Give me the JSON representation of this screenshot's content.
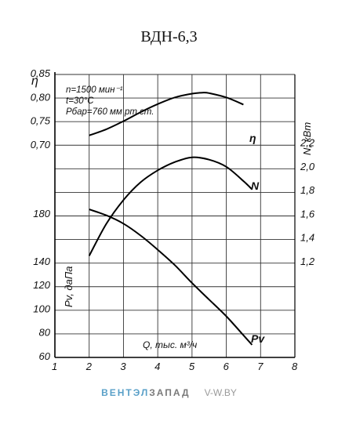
{
  "title": "ВДН-6,3",
  "footer": {
    "brand_left": "ВЕНТЭЛ",
    "brand_right": "ЗАПАД",
    "site": "V-W.BY"
  },
  "chart_data": {
    "type": "line",
    "grid": true,
    "conditions": [
      "n=1500 мин⁻¹",
      "t=30°C",
      "Pбар=760 мм рт.ст."
    ],
    "x_axis": {
      "label": "Q, тыс. м³/ч",
      "range": [
        1,
        8
      ],
      "ticks": [
        1,
        2,
        3,
        4,
        5,
        6,
        7,
        8
      ]
    },
    "axes": {
      "eta": {
        "label": "η",
        "side": "left",
        "range": [
          0.65,
          0.85
        ],
        "ticks": [
          0.7,
          0.75,
          0.8,
          0.85
        ],
        "tick_labels": [
          "0,70",
          "0,75",
          "0,80",
          "0,85"
        ]
      },
      "pv": {
        "label": "Pv, даПа",
        "side": "left",
        "range": [
          60,
          190
        ],
        "ticks": [
          60,
          80,
          100,
          120,
          140,
          180
        ],
        "tick_labels": [
          "60",
          "80",
          "100",
          "120",
          "140",
          "180"
        ]
      },
      "n": {
        "label": "N, кВт",
        "side": "right",
        "range": [
          1.0,
          2.3
        ],
        "ticks": [
          1.2,
          1.4,
          1.6,
          1.8,
          2.0,
          2.2
        ],
        "tick_labels": [
          "1,2",
          "1,4",
          "1,6",
          "1,8",
          "2,0",
          "2,2"
        ]
      }
    },
    "series": [
      {
        "name": "η",
        "axis": "eta",
        "points": [
          [
            2.0,
            0.72
          ],
          [
            2.5,
            0.733
          ],
          [
            3.0,
            0.75
          ],
          [
            3.5,
            0.769
          ],
          [
            4.0,
            0.786
          ],
          [
            4.5,
            0.8
          ],
          [
            5.0,
            0.808
          ],
          [
            5.3,
            0.81
          ],
          [
            5.5,
            0.809
          ],
          [
            6.0,
            0.8
          ],
          [
            6.5,
            0.785
          ]
        ]
      },
      {
        "name": "N",
        "axis": "n",
        "points": [
          [
            2.0,
            1.25
          ],
          [
            2.5,
            1.52
          ],
          [
            3.0,
            1.72
          ],
          [
            3.5,
            1.87
          ],
          [
            4.0,
            1.97
          ],
          [
            4.5,
            2.04
          ],
          [
            5.0,
            2.08
          ],
          [
            5.5,
            2.06
          ],
          [
            6.0,
            2.0
          ],
          [
            6.5,
            1.88
          ],
          [
            6.75,
            1.81
          ]
        ]
      },
      {
        "name": "Pv",
        "axis": "pv",
        "points": [
          [
            2.0,
            184
          ],
          [
            2.5,
            179
          ],
          [
            3.0,
            172
          ],
          [
            3.5,
            162
          ],
          [
            4.0,
            150
          ],
          [
            4.5,
            137
          ],
          [
            5.0,
            122
          ],
          [
            5.5,
            108
          ],
          [
            6.0,
            94
          ],
          [
            6.5,
            78
          ],
          [
            6.75,
            70
          ]
        ]
      }
    ]
  }
}
